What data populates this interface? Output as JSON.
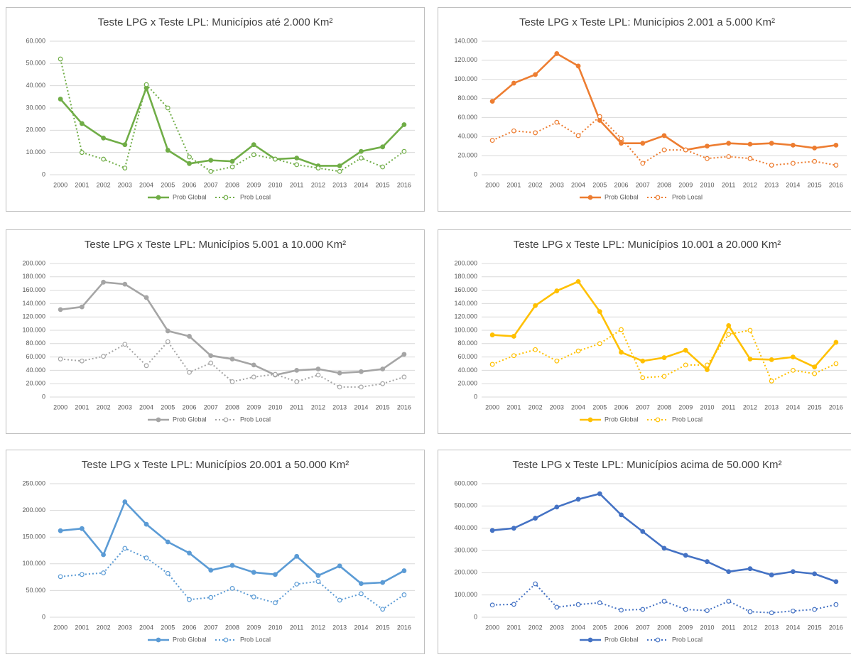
{
  "chart_data": [
    {
      "type": "line",
      "title": "Teste LPG x Teste LPL: Municípios até 2.000 Km²",
      "categories": [
        "2000",
        "2001",
        "2002",
        "2003",
        "2004",
        "2005",
        "2006",
        "2007",
        "2008",
        "2009",
        "2010",
        "2011",
        "2012",
        "2013",
        "2014",
        "2015",
        "2016"
      ],
      "series": [
        {
          "name": "Prob Global",
          "color": "#70ad47",
          "values": [
            34000,
            23000,
            16500,
            13500,
            39000,
            11000,
            5000,
            6500,
            6000,
            13500,
            7000,
            7500,
            4000,
            4000,
            10500,
            12500,
            22500
          ]
        },
        {
          "name": "Prob Local",
          "color": "#70ad47",
          "values": [
            52000,
            10000,
            7000,
            3000,
            40500,
            30000,
            8000,
            1500,
            3500,
            9000,
            7000,
            4500,
            3000,
            1500,
            7500,
            3500,
            10500
          ]
        }
      ],
      "ylim": [
        0,
        60000
      ],
      "yticks": [
        0,
        {
          "value": 10000,
          "label": "10.000"
        },
        {
          "value": 20000,
          "label": "20.000"
        },
        {
          "value": 30000,
          "label": "30.000"
        },
        {
          "value": 40000,
          "label": "40.000"
        },
        {
          "value": 50000,
          "label": "50.000"
        },
        {
          "value": 60000,
          "label": "60.000"
        }
      ],
      "grid": true
    },
    {
      "type": "line",
      "title": "Teste LPG x Teste LPL: Municípios 2.001 a 5.000 Km²",
      "categories": [
        "2000",
        "2001",
        "2002",
        "2003",
        "2004",
        "2005",
        "2006",
        "2007",
        "2008",
        "2009",
        "2010",
        "2011",
        "2012",
        "2013",
        "2014",
        "2015",
        "2016"
      ],
      "series": [
        {
          "name": "Prob Global",
          "color": "#ed7d31",
          "values": [
            77000,
            96000,
            105000,
            127000,
            114000,
            57000,
            33000,
            33000,
            41000,
            26000,
            30000,
            33000,
            32000,
            33000,
            31000,
            28000,
            31000
          ]
        },
        {
          "name": "Prob Local",
          "color": "#ed7d31",
          "values": [
            36000,
            46000,
            44000,
            55000,
            41000,
            61000,
            38000,
            12000,
            26000,
            26000,
            17000,
            19000,
            17000,
            10000,
            12000,
            14000,
            10000
          ]
        }
      ],
      "ylim": [
        0,
        140000
      ],
      "yticks": [
        0,
        {
          "value": 20000,
          "label": "20.000"
        },
        {
          "value": 40000,
          "label": "40.000"
        },
        {
          "value": 60000,
          "label": "60.000"
        },
        {
          "value": 80000,
          "label": "80.000"
        },
        {
          "value": 100000,
          "label": "100.000"
        },
        {
          "value": 120000,
          "label": "120.000"
        },
        {
          "value": 140000,
          "label": "140.000"
        }
      ],
      "grid": true
    },
    {
      "type": "line",
      "title": "Teste LPG x Teste LPL: Municípios 5.001 a 10.000 Km²",
      "categories": [
        "2000",
        "2001",
        "2002",
        "2003",
        "2004",
        "2005",
        "2006",
        "2007",
        "2008",
        "2009",
        "2010",
        "2011",
        "2012",
        "2013",
        "2014",
        "2015",
        "2016"
      ],
      "series": [
        {
          "name": "Prob Global",
          "color": "#a5a5a5",
          "values": [
            131000,
            135000,
            172000,
            169000,
            149000,
            99000,
            91000,
            62000,
            57000,
            48000,
            33000,
            40000,
            42000,
            36000,
            38000,
            42000,
            64000
          ]
        },
        {
          "name": "Prob Local",
          "color": "#a5a5a5",
          "values": [
            57000,
            54000,
            61000,
            79000,
            47000,
            83000,
            37000,
            51000,
            23000,
            30000,
            34000,
            23000,
            33000,
            15000,
            15000,
            20000,
            30000
          ]
        }
      ],
      "ylim": [
        0,
        200000
      ],
      "yticks": [
        0,
        {
          "value": 20000,
          "label": "20.000"
        },
        {
          "value": 40000,
          "label": "40.000"
        },
        {
          "value": 60000,
          "label": "60.000"
        },
        {
          "value": 80000,
          "label": "80.000"
        },
        {
          "value": 100000,
          "label": "100.000"
        },
        {
          "value": 120000,
          "label": "120.000"
        },
        {
          "value": 140000,
          "label": "140.000"
        },
        {
          "value": 160000,
          "label": "160.000"
        },
        {
          "value": 180000,
          "label": "180.000"
        },
        {
          "value": 200000,
          "label": "200.000"
        }
      ],
      "grid": true
    },
    {
      "type": "line",
      "title": "Teste LPG x Teste LPL: Municípios 10.001 a 20.000 Km²",
      "categories": [
        "2000",
        "2001",
        "2002",
        "2003",
        "2004",
        "2005",
        "2006",
        "2007",
        "2008",
        "2009",
        "2010",
        "2011",
        "2012",
        "2013",
        "2014",
        "2015",
        "2016"
      ],
      "series": [
        {
          "name": "Prob Global",
          "color": "#ffc000",
          "values": [
            93000,
            91000,
            137000,
            159000,
            173000,
            128000,
            67000,
            54000,
            59000,
            70000,
            41000,
            107000,
            57000,
            56000,
            60000,
            45000,
            82000
          ]
        },
        {
          "name": "Prob Local",
          "color": "#ffc000",
          "values": [
            49000,
            62000,
            71000,
            54000,
            69000,
            80000,
            101000,
            29000,
            31000,
            48000,
            48000,
            94000,
            100000,
            24000,
            40000,
            35000,
            50000
          ]
        }
      ],
      "ylim": [
        0,
        200000
      ],
      "yticks": [
        0,
        {
          "value": 20000,
          "label": "20.000"
        },
        {
          "value": 40000,
          "label": "40.000"
        },
        {
          "value": 60000,
          "label": "60.000"
        },
        {
          "value": 80000,
          "label": "80.000"
        },
        {
          "value": 100000,
          "label": "100.000"
        },
        {
          "value": 120000,
          "label": "120.000"
        },
        {
          "value": 140000,
          "label": "140.000"
        },
        {
          "value": 160000,
          "label": "160.000"
        },
        {
          "value": 180000,
          "label": "180.000"
        },
        {
          "value": 200000,
          "label": "200.000"
        }
      ],
      "grid": true
    },
    {
      "type": "line",
      "title": "Teste LPG x Teste LPL: Municípios 20.001 a 50.000 Km²",
      "categories": [
        "2000",
        "2001",
        "2002",
        "2003",
        "2004",
        "2005",
        "2006",
        "2007",
        "2008",
        "2009",
        "2010",
        "2011",
        "2012",
        "2013",
        "2014",
        "2015",
        "2016"
      ],
      "series": [
        {
          "name": "Prob Global",
          "color": "#5b9bd5",
          "values": [
            162000,
            166000,
            117000,
            216000,
            174000,
            141000,
            120000,
            88000,
            97000,
            84000,
            80000,
            114000,
            78000,
            96000,
            63000,
            65000,
            87000
          ]
        },
        {
          "name": "Prob Local",
          "color": "#5b9bd5",
          "values": [
            76000,
            80000,
            83000,
            129000,
            111000,
            82000,
            33000,
            37000,
            54000,
            38000,
            27000,
            62000,
            67000,
            32000,
            44000,
            15000,
            42000
          ]
        }
      ],
      "ylim": [
        0,
        250000
      ],
      "yticks": [
        0,
        {
          "value": 50000,
          "label": "50.000"
        },
        {
          "value": 100000,
          "label": "100.000"
        },
        {
          "value": 150000,
          "label": "150.000"
        },
        {
          "value": 200000,
          "label": "200.000"
        },
        {
          "value": 250000,
          "label": "250.000"
        }
      ],
      "grid": true
    },
    {
      "type": "line",
      "title": "Teste LPG x Teste LPL: Municípios acima de 50.000 Km²",
      "categories": [
        "2000",
        "2001",
        "2002",
        "2003",
        "2004",
        "2005",
        "2006",
        "2007",
        "2008",
        "2009",
        "2010",
        "2011",
        "2012",
        "2013",
        "2014",
        "2015",
        "2016"
      ],
      "series": [
        {
          "name": "Prob Global",
          "color": "#4472c4",
          "values": [
            390000,
            400000,
            445000,
            495000,
            530000,
            555000,
            460000,
            385000,
            310000,
            278000,
            250000,
            205000,
            218000,
            190000,
            205000,
            195000,
            160000
          ]
        },
        {
          "name": "Prob Local",
          "color": "#4472c4",
          "values": [
            55000,
            58000,
            150000,
            45000,
            57000,
            65000,
            32000,
            35000,
            72000,
            35000,
            30000,
            72000,
            25000,
            20000,
            28000,
            35000,
            57000
          ]
        }
      ],
      "ylim": [
        0,
        600000
      ],
      "yticks": [
        0,
        {
          "value": 100000,
          "label": "100.000"
        },
        {
          "value": 200000,
          "label": "200.000"
        },
        {
          "value": 300000,
          "label": "300.000"
        },
        {
          "value": 400000,
          "label": "400.000"
        },
        {
          "value": 500000,
          "label": "500.000"
        },
        {
          "value": 600000,
          "label": "600.000"
        }
      ],
      "grid": true
    }
  ]
}
